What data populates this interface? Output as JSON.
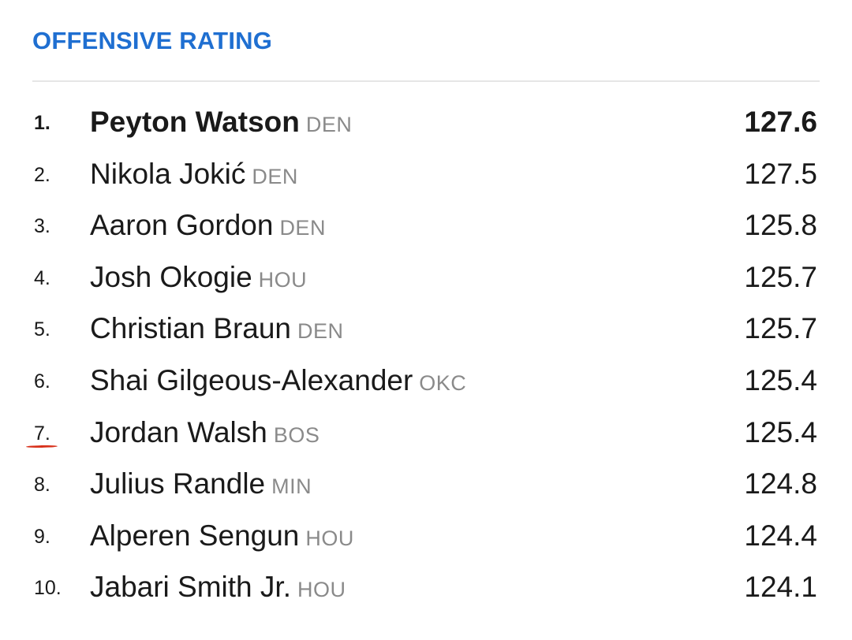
{
  "header": {
    "title": "OFFENSIVE RATING"
  },
  "leaders": [
    {
      "rank": "1.",
      "player": "Peyton Watson",
      "team": "DEN",
      "value": "127.6"
    },
    {
      "rank": "2.",
      "player": "Nikola Jokić",
      "team": "DEN",
      "value": "127.5"
    },
    {
      "rank": "3.",
      "player": "Aaron Gordon",
      "team": "DEN",
      "value": "125.8"
    },
    {
      "rank": "4.",
      "player": "Josh Okogie",
      "team": "HOU",
      "value": "125.7"
    },
    {
      "rank": "5.",
      "player": "Christian Braun",
      "team": "DEN",
      "value": "125.7"
    },
    {
      "rank": "6.",
      "player": "Shai Gilgeous-Alexander",
      "team": "OKC",
      "value": "125.4"
    },
    {
      "rank": "7.",
      "player": "Jordan Walsh",
      "team": "BOS",
      "value": "125.4"
    },
    {
      "rank": "8.",
      "player": "Julius Randle",
      "team": "MIN",
      "value": "124.8"
    },
    {
      "rank": "9.",
      "player": "Alperen Sengun",
      "team": "HOU",
      "value": "124.4"
    },
    {
      "rank": "10.",
      "player": "Jabari Smith Jr.",
      "team": "HOU",
      "value": "124.1"
    }
  ],
  "colors": {
    "title": "#1f6fd1",
    "team_abbrev": "#8a8a8a",
    "annotation_underline": "#d8321c"
  }
}
